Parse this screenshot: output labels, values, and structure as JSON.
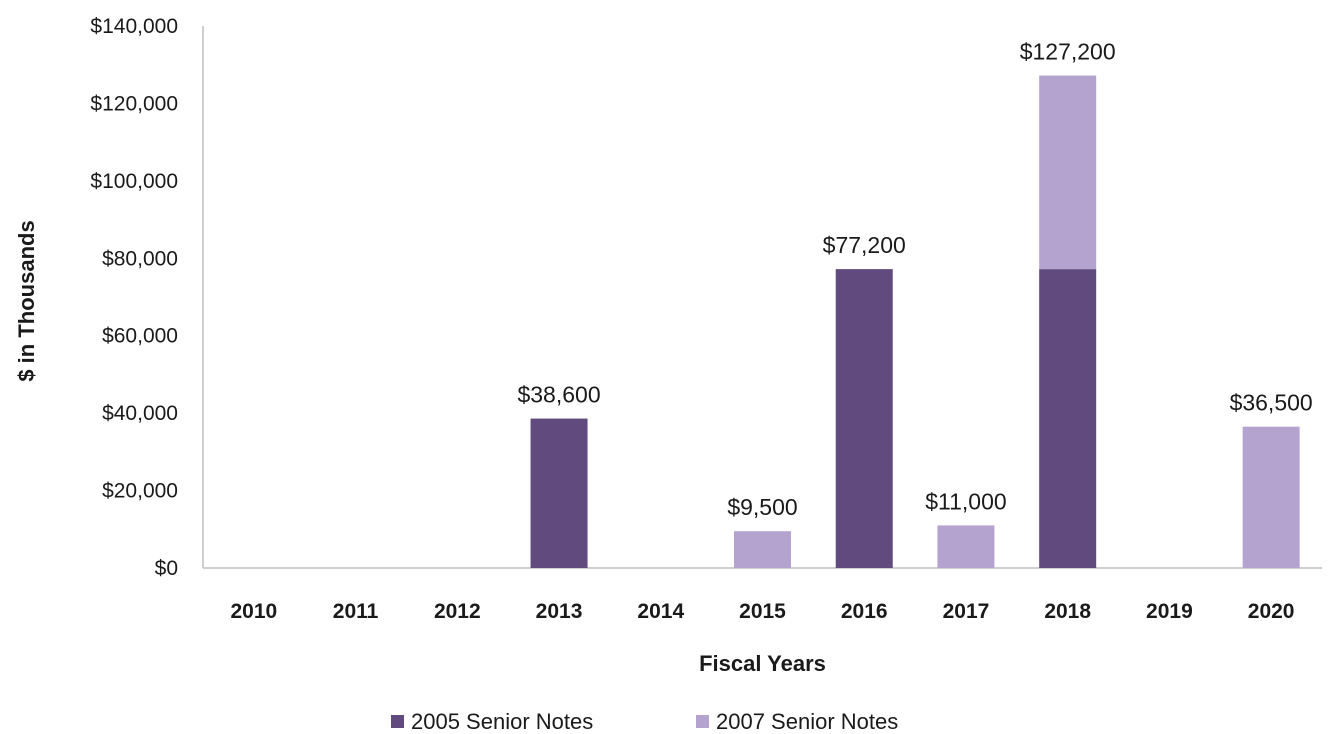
{
  "chart_data": {
    "type": "bar",
    "stacked": true,
    "title": "",
    "xlabel": "Fiscal Years",
    "ylabel": "$ in Thousands",
    "ylim": [
      0,
      140000
    ],
    "yticks": [
      0,
      20000,
      40000,
      60000,
      80000,
      100000,
      120000,
      140000
    ],
    "ytick_labels": [
      "$0",
      "$20,000",
      "$40,000",
      "$60,000",
      "$80,000",
      "$100,000",
      "$120,000",
      "$140,000"
    ],
    "categories": [
      "2010",
      "2011",
      "2012",
      "2013",
      "2014",
      "2015",
      "2016",
      "2017",
      "2018",
      "2019",
      "2020"
    ],
    "series": [
      {
        "name": "2005 Senior Notes",
        "color": "#614a7d",
        "values": [
          0,
          0,
          0,
          38600,
          0,
          0,
          77200,
          0,
          77200,
          0,
          0
        ]
      },
      {
        "name": "2007 Senior Notes",
        "color": "#b5a3cf",
        "values": [
          0,
          0,
          0,
          0,
          0,
          9500,
          0,
          11000,
          50000,
          0,
          36500
        ]
      }
    ],
    "total_labels": [
      "",
      "",
      "",
      "$38,600",
      "",
      "$9,500",
      "$77,200",
      "$11,000",
      "$127,200",
      "",
      "$36,500"
    ],
    "legend_position": "bottom",
    "grid": false
  }
}
